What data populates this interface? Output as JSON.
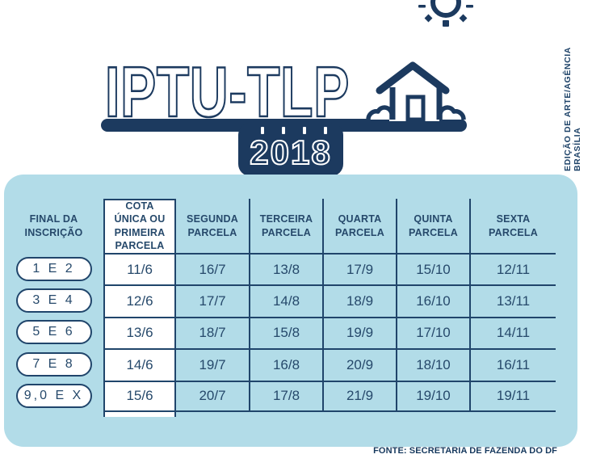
{
  "title": "IPTU-TLP",
  "year": "2018",
  "credit": "EDIÇÃO DE ARTE/AGÊNCIA BRASÍLIA",
  "footer_source": "FONTE: SECRETARIA DE FAZENDA DO DF",
  "colors": {
    "navy": "#1c3a5f",
    "panel_blue": "#b2dce8",
    "grid_line": "#20456b",
    "table_text": "#26496b",
    "highlight_column": "#ffffff"
  },
  "icons": [
    "sun-icon",
    "house-icon",
    "calendar-badge"
  ],
  "chart_data": {
    "type": "table",
    "title": "IPTU-TLP 2018",
    "columns": [
      "FINAL DA INSCRIÇÃO",
      "COTA ÚNICA OU PRIMEIRA PARCELA",
      "SEGUNDA PARCELA",
      "TERCEIRA PARCELA",
      "QUARTA PARCELA",
      "QUINTA PARCELA",
      "SEXTA PARCELA"
    ],
    "rows": [
      {
        "final": "1 E 2",
        "dates": [
          "11/6",
          "16/7",
          "13/8",
          "17/9",
          "15/10",
          "12/11"
        ]
      },
      {
        "final": "3 E 4",
        "dates": [
          "12/6",
          "17/7",
          "14/8",
          "18/9",
          "16/10",
          "13/11"
        ]
      },
      {
        "final": "5 E 6",
        "dates": [
          "13/6",
          "18/7",
          "15/8",
          "19/9",
          "17/10",
          "14/11"
        ]
      },
      {
        "final": "7 E 8",
        "dates": [
          "14/6",
          "19/7",
          "16/8",
          "20/9",
          "18/10",
          "16/11"
        ]
      },
      {
        "final": "9,0 E X",
        "dates": [
          "15/6",
          "20/7",
          "17/8",
          "21/9",
          "19/10",
          "19/11"
        ]
      }
    ],
    "notes": "Highlighted white column = Cota única ou primeira parcela; row labels = final digit of inscription"
  }
}
